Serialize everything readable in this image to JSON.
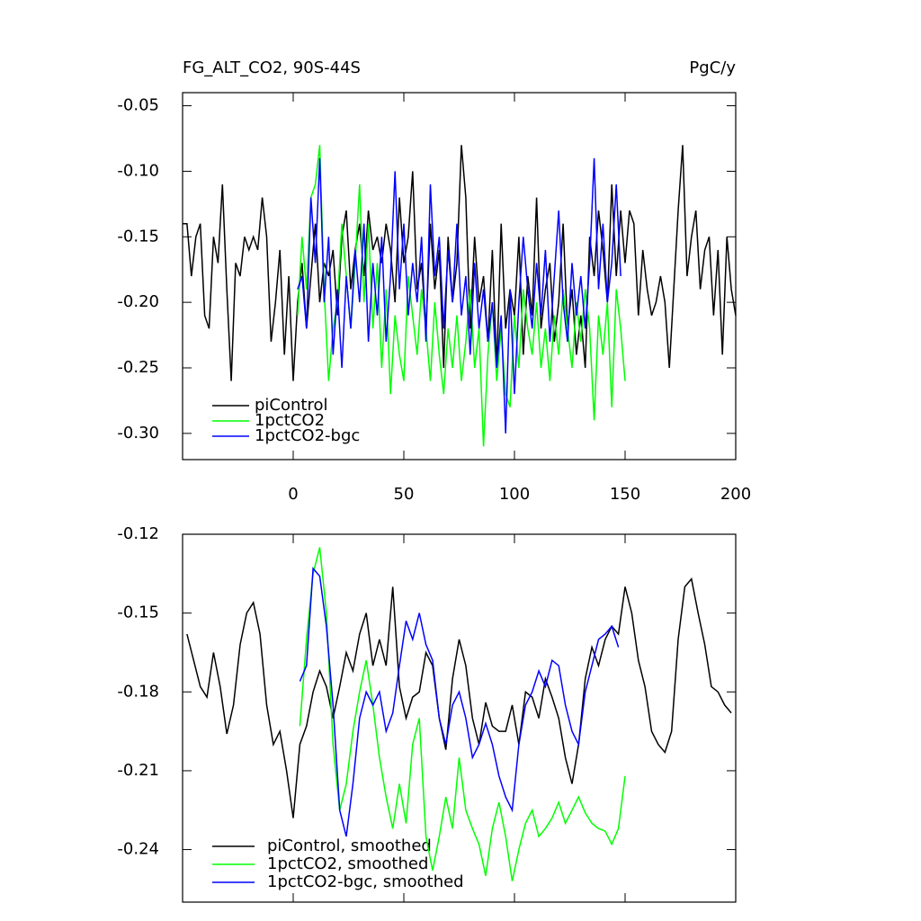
{
  "chart_data": [
    {
      "type": "line",
      "title": "FG_ALT_CO2, 90S-44S",
      "units": "PgC/y",
      "x": [
        -50,
        -48,
        -46,
        -44,
        -42,
        -40,
        -38,
        -36,
        -34,
        -32,
        -30,
        -28,
        -26,
        -24,
        -22,
        -20,
        -18,
        -16,
        -14,
        -12,
        -10,
        -8,
        -6,
        -4,
        -2,
        0,
        2,
        4,
        6,
        8,
        10,
        12,
        14,
        16,
        18,
        20,
        22,
        24,
        26,
        28,
        30,
        32,
        34,
        36,
        38,
        40,
        42,
        44,
        46,
        48,
        50,
        52,
        54,
        56,
        58,
        60,
        62,
        64,
        66,
        68,
        70,
        72,
        74,
        76,
        78,
        80,
        82,
        84,
        86,
        88,
        90,
        92,
        94,
        96,
        98,
        100,
        102,
        104,
        106,
        108,
        110,
        112,
        114,
        116,
        118,
        120,
        122,
        124,
        126,
        128,
        130,
        132,
        134,
        136,
        138,
        140,
        142,
        144,
        146,
        148,
        150,
        152,
        154,
        156,
        158,
        160,
        162,
        164,
        166,
        168,
        170,
        172,
        174,
        176,
        178,
        180,
        182,
        184,
        186,
        188,
        190,
        192,
        194,
        196,
        198,
        200
      ],
      "series": [
        {
          "name": "piControl",
          "color": "#000000",
          "values": [
            -0.14,
            -0.14,
            -0.18,
            -0.15,
            -0.14,
            -0.21,
            -0.22,
            -0.15,
            -0.17,
            -0.11,
            -0.19,
            -0.26,
            -0.17,
            -0.18,
            -0.15,
            -0.16,
            -0.15,
            -0.16,
            -0.12,
            -0.15,
            -0.23,
            -0.2,
            -0.16,
            -0.24,
            -0.18,
            -0.26,
            -0.2,
            -0.17,
            -0.22,
            -0.18,
            -0.14,
            -0.2,
            -0.17,
            -0.18,
            -0.16,
            -0.21,
            -0.15,
            -0.13,
            -0.19,
            -0.16,
            -0.14,
            -0.18,
            -0.13,
            -0.16,
            -0.15,
            -0.17,
            -0.14,
            -0.16,
            -0.2,
            -0.12,
            -0.17,
            -0.15,
            -0.1,
            -0.19,
            -0.17,
            -0.22,
            -0.14,
            -0.19,
            -0.16,
            -0.25,
            -0.15,
            -0.2,
            -0.17,
            -0.08,
            -0.12,
            -0.22,
            -0.15,
            -0.2,
            -0.18,
            -0.23,
            -0.16,
            -0.25,
            -0.14,
            -0.22,
            -0.19,
            -0.21,
            -0.15,
            -0.24,
            -0.18,
            -0.21,
            -0.12,
            -0.22,
            -0.19,
            -0.17,
            -0.23,
            -0.2,
            -0.14,
            -0.22,
            -0.19,
            -0.24,
            -0.21,
            -0.25,
            -0.15,
            -0.18,
            -0.13,
            -0.16,
            -0.2,
            -0.11,
            -0.18,
            -0.13,
            -0.17,
            -0.13,
            -0.14,
            -0.21,
            -0.16,
            -0.19,
            -0.21,
            -0.2,
            -0.18,
            -0.2,
            -0.25,
            -0.19,
            -0.13,
            -0.08,
            -0.18,
            -0.15,
            -0.13,
            -0.19,
            -0.16,
            -0.15,
            -0.21,
            -0.16,
            -0.24,
            -0.15,
            -0.19,
            -0.21
          ]
        },
        {
          "name": "1pctCO2",
          "color": "#00ff00",
          "values": [
            null,
            null,
            null,
            null,
            null,
            null,
            null,
            null,
            null,
            null,
            null,
            null,
            null,
            null,
            null,
            null,
            null,
            null,
            null,
            null,
            null,
            null,
            null,
            null,
            null,
            null,
            -0.21,
            -0.15,
            -0.19,
            -0.12,
            -0.11,
            -0.08,
            -0.19,
            -0.26,
            -0.22,
            -0.2,
            -0.14,
            -0.18,
            -0.22,
            -0.17,
            -0.11,
            -0.2,
            -0.14,
            -0.22,
            -0.17,
            -0.25,
            -0.19,
            -0.27,
            -0.21,
            -0.24,
            -0.26,
            -0.18,
            -0.21,
            -0.24,
            -0.19,
            -0.22,
            -0.26,
            -0.2,
            -0.24,
            -0.27,
            -0.22,
            -0.25,
            -0.21,
            -0.26,
            -0.23,
            -0.19,
            -0.25,
            -0.22,
            -0.31,
            -0.24,
            -0.2,
            -0.26,
            -0.22,
            -0.27,
            -0.28,
            -0.21,
            -0.25,
            -0.19,
            -0.22,
            -0.24,
            -0.2,
            -0.25,
            -0.22,
            -0.26,
            -0.21,
            -0.24,
            -0.19,
            -0.22,
            -0.25,
            -0.2,
            -0.23,
            -0.19,
            -0.22,
            -0.29,
            -0.21,
            -0.24,
            -0.2,
            -0.28,
            -0.19,
            -0.22,
            -0.26,
            null,
            null,
            null,
            null,
            null,
            null,
            null,
            null,
            null,
            null,
            null,
            null,
            null,
            null,
            null,
            null,
            null,
            null,
            null,
            null,
            null,
            null,
            null,
            null,
            null
          ]
        },
        {
          "name": "1pctCO2-bgc",
          "color": "#0000ff",
          "values": [
            null,
            null,
            null,
            null,
            null,
            null,
            null,
            null,
            null,
            null,
            null,
            null,
            null,
            null,
            null,
            null,
            null,
            null,
            null,
            null,
            null,
            null,
            null,
            null,
            null,
            null,
            -0.19,
            -0.18,
            -0.22,
            -0.12,
            -0.17,
            -0.09,
            -0.2,
            -0.15,
            -0.24,
            -0.19,
            -0.25,
            -0.18,
            -0.22,
            -0.16,
            -0.2,
            -0.14,
            -0.23,
            -0.17,
            -0.21,
            -0.15,
            -0.23,
            -0.18,
            -0.1,
            -0.19,
            -0.14,
            -0.21,
            -0.17,
            -0.2,
            -0.15,
            -0.23,
            -0.11,
            -0.18,
            -0.15,
            -0.22,
            -0.16,
            -0.2,
            -0.14,
            -0.21,
            -0.18,
            -0.24,
            -0.17,
            -0.22,
            -0.19,
            -0.23,
            -0.2,
            -0.25,
            -0.21,
            -0.3,
            -0.19,
            -0.27,
            -0.2,
            -0.15,
            -0.19,
            -0.22,
            -0.17,
            -0.21,
            -0.16,
            -0.23,
            -0.18,
            -0.13,
            -0.2,
            -0.23,
            -0.17,
            -0.21,
            -0.18,
            -0.22,
            -0.17,
            -0.09,
            -0.19,
            -0.14,
            -0.2,
            -0.17,
            -0.11,
            -0.18,
            null,
            null,
            null,
            null,
            null,
            null,
            null,
            null,
            null,
            null,
            null,
            null,
            null,
            null,
            null,
            null,
            null,
            null,
            null,
            null,
            null,
            null,
            null,
            null,
            null,
            null
          ]
        }
      ],
      "xlim": [
        -50,
        200
      ],
      "xticks": [
        0,
        50,
        100,
        150,
        200
      ],
      "xtick_labels": true,
      "ylim": [
        -0.32,
        -0.04
      ],
      "yticks": [
        -0.05,
        {
          "value": -0.1,
          "label": "-0.10"
        },
        -0.15,
        {
          "value": -0.2,
          "label": "-0.20"
        },
        -0.25,
        {
          "value": -0.3,
          "label": "-0.30"
        }
      ]
    },
    {
      "type": "line",
      "x": [
        -48,
        -45,
        -42,
        -39,
        -36,
        -33,
        -30,
        -27,
        -24,
        -21,
        -18,
        -15,
        -12,
        -9,
        -6,
        -3,
        0,
        3,
        6,
        9,
        12,
        15,
        18,
        21,
        24,
        27,
        30,
        33,
        36,
        39,
        42,
        45,
        48,
        51,
        54,
        57,
        60,
        63,
        66,
        69,
        72,
        75,
        78,
        81,
        84,
        87,
        90,
        93,
        96,
        99,
        102,
        105,
        108,
        111,
        114,
        117,
        120,
        123,
        126,
        129,
        132,
        135,
        138,
        141,
        144,
        147,
        150,
        153,
        156,
        159,
        162,
        165,
        168,
        171,
        174,
        177,
        180,
        183,
        186,
        189,
        192,
        195,
        198
      ],
      "series": [
        {
          "name": "piControl, smoothed",
          "color": "#000000",
          "values": [
            -0.158,
            -0.168,
            -0.178,
            -0.182,
            -0.165,
            -0.178,
            -0.196,
            -0.185,
            -0.162,
            -0.15,
            -0.146,
            -0.158,
            -0.185,
            -0.2,
            -0.195,
            -0.21,
            -0.228,
            -0.2,
            -0.193,
            -0.18,
            -0.172,
            -0.178,
            -0.19,
            -0.178,
            -0.165,
            -0.172,
            -0.158,
            -0.15,
            -0.17,
            -0.16,
            -0.17,
            -0.14,
            -0.178,
            -0.19,
            -0.182,
            -0.18,
            -0.165,
            -0.17,
            -0.19,
            -0.202,
            -0.175,
            -0.16,
            -0.17,
            -0.19,
            -0.2,
            -0.184,
            -0.193,
            -0.195,
            -0.195,
            -0.185,
            -0.2,
            -0.18,
            -0.182,
            -0.19,
            -0.175,
            -0.182,
            -0.19,
            -0.205,
            -0.215,
            -0.2,
            -0.175,
            -0.163,
            -0.17,
            -0.16,
            -0.155,
            -0.158,
            -0.14,
            -0.15,
            -0.168,
            -0.178,
            -0.195,
            -0.2,
            -0.203,
            -0.195,
            -0.16,
            -0.14,
            -0.137,
            -0.15,
            -0.162,
            -0.178,
            -0.18,
            -0.185,
            -0.188
          ]
        },
        {
          "name": "1pctCO2, smoothed",
          "color": "#00ff00",
          "values": [
            null,
            null,
            null,
            null,
            null,
            null,
            null,
            null,
            null,
            null,
            null,
            null,
            null,
            null,
            null,
            null,
            null,
            -0.193,
            -0.16,
            -0.135,
            -0.125,
            -0.15,
            -0.2,
            -0.225,
            -0.215,
            -0.195,
            -0.18,
            -0.168,
            -0.185,
            -0.205,
            -0.22,
            -0.232,
            -0.215,
            -0.23,
            -0.2,
            -0.19,
            -0.235,
            -0.248,
            -0.235,
            -0.22,
            -0.232,
            -0.205,
            -0.225,
            -0.232,
            -0.238,
            -0.25,
            -0.232,
            -0.222,
            -0.235,
            -0.252,
            -0.24,
            -0.23,
            -0.225,
            -0.235,
            -0.232,
            -0.228,
            -0.222,
            -0.23,
            -0.225,
            -0.22,
            -0.226,
            -0.23,
            -0.232,
            -0.233,
            -0.238,
            -0.232,
            -0.212,
            null,
            null,
            null,
            null,
            null,
            null,
            null,
            null,
            null,
            null,
            null,
            null,
            null,
            null,
            null,
            null
          ]
        },
        {
          "name": "1pctCO2-bgc, smoothed",
          "color": "#0000ff",
          "values": [
            null,
            null,
            null,
            null,
            null,
            null,
            null,
            null,
            null,
            null,
            null,
            null,
            null,
            null,
            null,
            null,
            null,
            -0.176,
            -0.17,
            -0.133,
            -0.136,
            -0.155,
            -0.185,
            -0.225,
            -0.235,
            -0.215,
            -0.19,
            -0.18,
            -0.185,
            -0.18,
            -0.195,
            -0.188,
            -0.17,
            -0.153,
            -0.16,
            -0.15,
            -0.162,
            -0.168,
            -0.19,
            -0.2,
            -0.185,
            -0.18,
            -0.19,
            -0.205,
            -0.2,
            -0.192,
            -0.2,
            -0.212,
            -0.22,
            -0.225,
            -0.2,
            -0.185,
            -0.18,
            -0.172,
            -0.178,
            -0.168,
            -0.17,
            -0.185,
            -0.195,
            -0.2,
            -0.18,
            -0.17,
            -0.16,
            -0.158,
            -0.155,
            -0.163,
            null,
            null,
            null,
            null,
            null,
            null,
            null,
            null,
            null,
            null,
            null,
            null,
            null,
            null,
            null,
            null,
            null
          ]
        }
      ],
      "xlim": [
        -50,
        200
      ],
      "xticks": [
        0,
        50,
        100,
        150,
        200
      ],
      "xtick_labels": false,
      "ylim": [
        -0.26,
        -0.12
      ],
      "yticks": [
        -0.12,
        -0.15,
        -0.18,
        -0.21,
        -0.24
      ]
    }
  ]
}
